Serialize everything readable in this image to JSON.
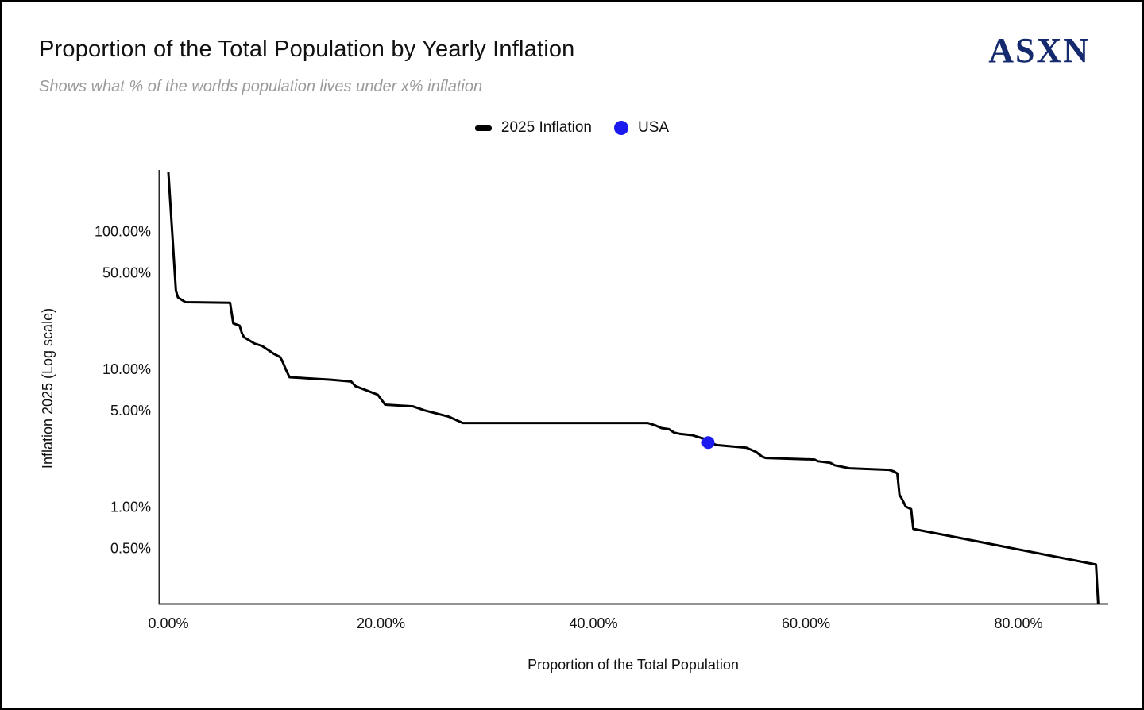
{
  "header": {
    "title": "Proportion of the Total Population by Yearly Inflation",
    "subtitle": "Shows what % of the worlds population lives under x% inflation",
    "logo": "ASXN",
    "logo_color": "#152a6e"
  },
  "legend": {
    "items": [
      {
        "label": "2025 Inflation",
        "marker": "line-swatch",
        "color": "#000000"
      },
      {
        "label": "USA",
        "marker": "dot-swatch",
        "color": "#1b1bef"
      }
    ]
  },
  "chart_data": {
    "type": "line",
    "title": "Proportion of the Total Population by Yearly Inflation",
    "xlabel": "Proportion of the Total Population",
    "ylabel": "Inflation 2025 (Log scale)",
    "x_axis": {
      "tick_values": [
        0,
        20,
        40,
        60,
        80
      ],
      "tick_labels": [
        "0.00%",
        "20.00%",
        "40.00%",
        "60.00%",
        "80.00%"
      ],
      "range": [
        -1,
        88.5
      ],
      "unit": "% of world population"
    },
    "y_axis": {
      "scale": "log",
      "tick_values": [
        100,
        50,
        10,
        5,
        1,
        0.5
      ],
      "tick_labels": [
        "100.00%",
        "50.00%",
        "10.00%",
        "5.00%",
        "1.00%",
        "0.50%"
      ],
      "range": [
        0.19,
        270
      ],
      "unit": "% yearly inflation"
    },
    "grid": false,
    "legend_position": "top-center",
    "series": [
      {
        "name": "2025 Inflation",
        "type": "step-line",
        "color": "#000000",
        "stroke_width": 3,
        "points": [
          [
            0.0,
            265
          ],
          [
            0.7,
            37
          ],
          [
            0.9,
            33
          ],
          [
            1.6,
            30.5
          ],
          [
            5.8,
            30.2
          ],
          [
            6.1,
            21.4
          ],
          [
            6.7,
            20.6
          ],
          [
            6.9,
            18.3
          ],
          [
            7.1,
            17.0
          ],
          [
            8.1,
            15.3
          ],
          [
            8.8,
            14.7
          ],
          [
            9.9,
            12.9
          ],
          [
            10.5,
            12.2
          ],
          [
            10.7,
            11.5
          ],
          [
            11.1,
            9.7
          ],
          [
            11.4,
            8.7
          ],
          [
            15.3,
            8.35
          ],
          [
            17.2,
            8.1
          ],
          [
            17.6,
            7.5
          ],
          [
            19.7,
            6.5
          ],
          [
            20.4,
            5.5
          ],
          [
            23.0,
            5.35
          ],
          [
            24.1,
            5.0
          ],
          [
            26.4,
            4.5
          ],
          [
            27.1,
            4.25
          ],
          [
            27.7,
            4.05
          ],
          [
            45.1,
            4.05
          ],
          [
            45.8,
            3.9
          ],
          [
            46.4,
            3.72
          ],
          [
            47.1,
            3.65
          ],
          [
            47.6,
            3.45
          ],
          [
            48.1,
            3.38
          ],
          [
            49.3,
            3.3
          ],
          [
            49.9,
            3.2
          ],
          [
            50.5,
            3.1
          ],
          [
            50.8,
            2.95
          ],
          [
            51.6,
            2.8
          ],
          [
            54.4,
            2.68
          ],
          [
            55.3,
            2.5
          ],
          [
            55.9,
            2.3
          ],
          [
            56.2,
            2.26
          ],
          [
            60.8,
            2.2
          ],
          [
            61.1,
            2.14
          ],
          [
            62.3,
            2.08
          ],
          [
            62.7,
            2.0
          ],
          [
            64.1,
            1.9
          ],
          [
            67.8,
            1.85
          ],
          [
            68.3,
            1.8
          ],
          [
            68.6,
            1.74
          ],
          [
            68.8,
            1.22
          ],
          [
            69.0,
            1.15
          ],
          [
            69.4,
            1.0
          ],
          [
            69.9,
            0.96
          ],
          [
            70.1,
            0.69
          ],
          [
            87.3,
            0.38
          ],
          [
            87.5,
            0.2
          ]
        ]
      },
      {
        "name": "USA",
        "type": "point",
        "color": "#1b1bef",
        "x": 50.8,
        "y": 2.92,
        "radius": 8
      }
    ]
  }
}
